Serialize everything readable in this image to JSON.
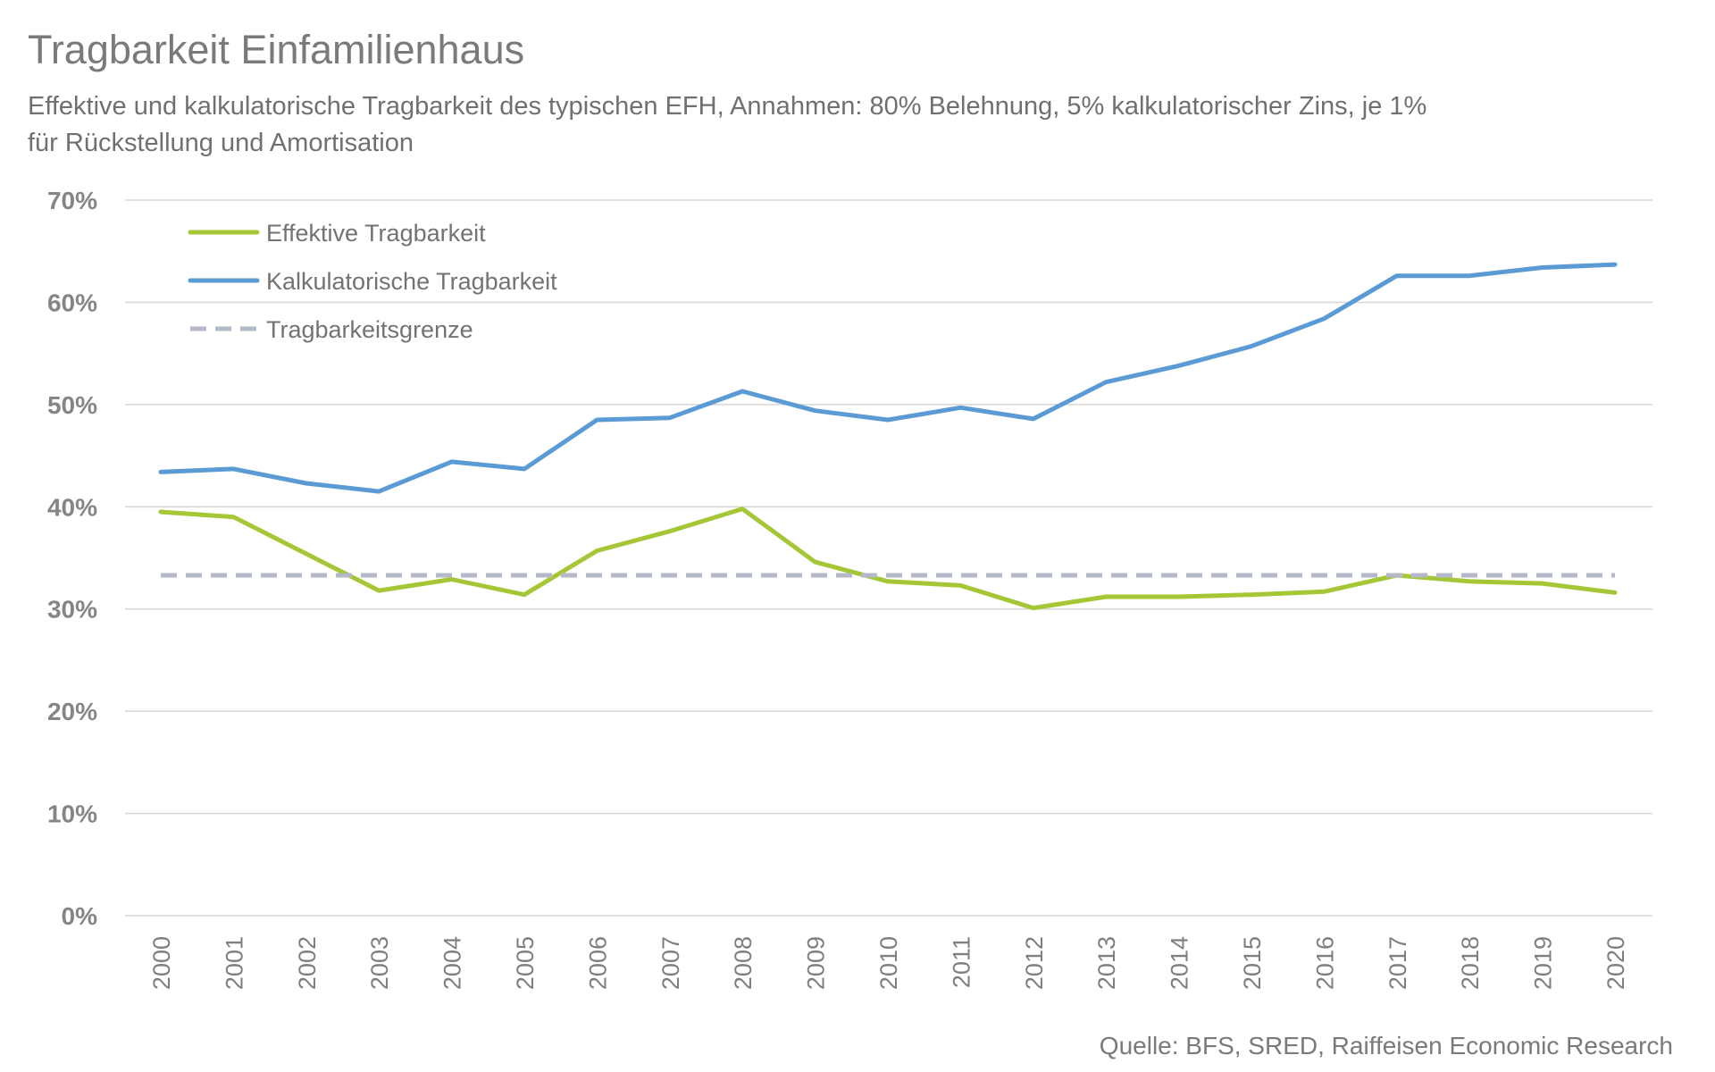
{
  "chart_data": {
    "type": "line",
    "title": "Tragbarkeit Einfamilienhaus",
    "subtitle": [
      "Effektive und kalkulatorische Tragbarkeit des typischen EFH, Annahmen: 80% Belehnung, 5% kalkulatorischer Zins, je 1%",
      "für Rückstellung und Amortisation"
    ],
    "x": [
      "2000",
      "2001",
      "2002",
      "2003",
      "2004",
      "2005",
      "2006",
      "2007",
      "2008",
      "2009",
      "2010",
      "2011",
      "2012",
      "2013",
      "2014",
      "2015",
      "2016",
      "2017",
      "2018",
      "2019",
      "2020"
    ],
    "xlabel": "",
    "ylabel": "",
    "ylim": [
      0,
      70
    ],
    "yticks": [
      0,
      10,
      20,
      30,
      40,
      50,
      60,
      70
    ],
    "ytick_labels": [
      "0%",
      "10%",
      "20%",
      "30%",
      "40%",
      "50%",
      "60%",
      "70%"
    ],
    "grid": true,
    "legend": "top-left",
    "series": [
      {
        "name": "Effektive Tragbarkeit",
        "color": "#a5c736",
        "style": "solid",
        "values": [
          39.5,
          39.0,
          35.4,
          31.8,
          32.9,
          31.4,
          35.7,
          37.6,
          39.8,
          34.6,
          32.7,
          32.3,
          30.1,
          31.2,
          31.2,
          31.4,
          31.7,
          33.3,
          32.7,
          32.5,
          31.6
        ]
      },
      {
        "name": "Kalkulatorische Tragbarkeit",
        "color": "#5b9bd5",
        "style": "solid",
        "values": [
          43.4,
          43.7,
          42.3,
          41.5,
          44.4,
          43.7,
          48.5,
          48.7,
          51.3,
          49.4,
          48.5,
          49.7,
          48.6,
          52.2,
          53.8,
          55.7,
          58.4,
          62.6,
          62.6,
          63.4,
          63.7
        ]
      },
      {
        "name": "Tragbarkeitsgrenze",
        "color": "#b4b9c9",
        "style": "dashed",
        "value": 33.3
      }
    ],
    "source": "Quelle: BFS, SRED, Raiffeisen Economic Research"
  }
}
